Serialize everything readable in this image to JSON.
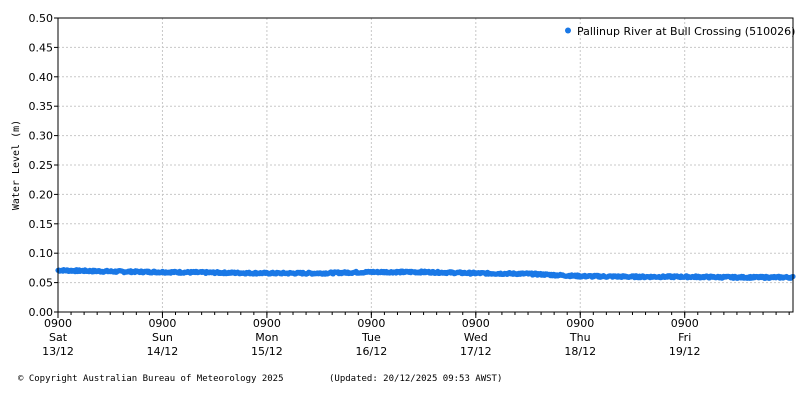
{
  "chart_data": {
    "type": "scatter",
    "ylabel": "Water Level (m)",
    "xlabel": "",
    "ylim": [
      0,
      0.5
    ],
    "y_ticks": [
      "0.00",
      "0.05",
      "0.10",
      "0.15",
      "0.20",
      "0.25",
      "0.30",
      "0.35",
      "0.40",
      "0.45",
      "0.50"
    ],
    "x_range": [
      "2025-12-13 09:00",
      "2025-12-20 09:53"
    ],
    "x_ticks": [
      {
        "time": "0900",
        "day": "Sat",
        "date": "13/12"
      },
      {
        "time": "0900",
        "day": "Sun",
        "date": "14/12"
      },
      {
        "time": "0900",
        "day": "Mon",
        "date": "15/12"
      },
      {
        "time": "0900",
        "day": "Tue",
        "date": "16/12"
      },
      {
        "time": "0900",
        "day": "Wed",
        "date": "17/12"
      },
      {
        "time": "0900",
        "day": "Thu",
        "date": "18/12"
      },
      {
        "time": "0900",
        "day": "Fri",
        "date": "19/12"
      }
    ],
    "grid": true,
    "legend_position": "top-right",
    "series": [
      {
        "name": "Pallinup River at Bull Crossing (510026)",
        "color": "#1a78e6",
        "x": [
          "2025-12-13 09:00",
          "2025-12-13 21:00",
          "2025-12-14 09:00",
          "2025-12-14 21:00",
          "2025-12-15 09:00",
          "2025-12-15 21:00",
          "2025-12-16 09:00",
          "2025-12-16 21:00",
          "2025-12-17 09:00",
          "2025-12-17 21:00",
          "2025-12-18 09:00",
          "2025-12-18 21:00",
          "2025-12-19 09:00",
          "2025-12-19 21:00",
          "2025-12-20 09:00"
        ],
        "y": [
          0.071,
          0.069,
          0.068,
          0.067,
          0.066,
          0.066,
          0.068,
          0.068,
          0.066,
          0.065,
          0.061,
          0.06,
          0.06,
          0.059,
          0.059
        ]
      }
    ]
  },
  "footer": {
    "copyright": "© Copyright Australian Bureau of Meteorology 2025",
    "updated": "(Updated: 20/12/2025 09:53 AWST)"
  }
}
